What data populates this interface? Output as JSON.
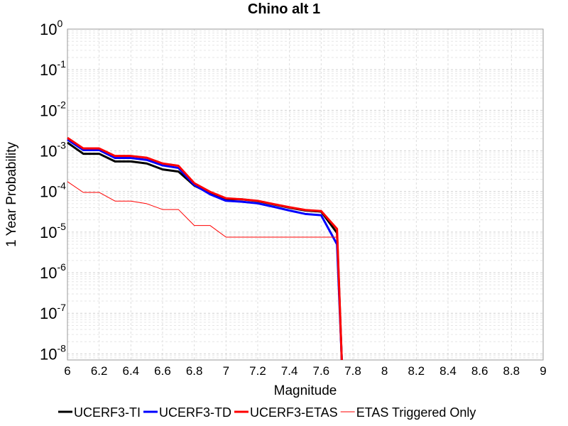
{
  "chart_data": {
    "type": "line",
    "title": "Chino alt 1",
    "xlabel": "Magnitude",
    "ylabel": "1 Year Probability",
    "xlim": [
      6,
      9
    ],
    "ylim_log10": [
      -8.15,
      0
    ],
    "y_scale": "log",
    "grid": true,
    "legend_placement": "bottom",
    "x_ticks": [
      "6",
      "6.2",
      "6.4",
      "6.6",
      "6.8",
      "7",
      "7.2",
      "7.4",
      "7.6",
      "7.8",
      "8",
      "8.2",
      "8.4",
      "8.6",
      "8.8",
      "9"
    ],
    "y_ticks": [
      {
        "base": "10",
        "exp": "0",
        "log10": 0
      },
      {
        "base": "10",
        "exp": "-1",
        "log10": -1
      },
      {
        "base": "10",
        "exp": "-2",
        "log10": -2
      },
      {
        "base": "10",
        "exp": "-3",
        "log10": -3
      },
      {
        "base": "10",
        "exp": "-4",
        "log10": -4
      },
      {
        "base": "10",
        "exp": "-5",
        "log10": -5
      },
      {
        "base": "10",
        "exp": "-6",
        "log10": -6
      },
      {
        "base": "10",
        "exp": "-7",
        "log10": -7
      },
      {
        "base": "10",
        "exp": "-8",
        "log10": -8
      }
    ],
    "series": [
      {
        "name": "UCERF3-TI",
        "color": "#000000",
        "width": 3,
        "points": [
          [
            6.0,
            0.0016
          ],
          [
            6.1,
            0.00085
          ],
          [
            6.2,
            0.00085
          ],
          [
            6.3,
            0.00055
          ],
          [
            6.4,
            0.00055
          ],
          [
            6.5,
            0.00049
          ],
          [
            6.6,
            0.00035
          ],
          [
            6.7,
            0.00031
          ],
          [
            6.8,
            0.00014
          ],
          [
            6.9,
            9e-05
          ],
          [
            7.0,
            6.5e-05
          ],
          [
            7.1,
            6.4e-05
          ],
          [
            7.2,
            5.8e-05
          ],
          [
            7.3,
            4.8e-05
          ],
          [
            7.4,
            4e-05
          ],
          [
            7.5,
            3.4e-05
          ],
          [
            7.6,
            3.2e-05
          ],
          [
            7.7,
            9.5e-06
          ],
          [
            7.73,
            5e-09
          ]
        ]
      },
      {
        "name": "UCERF3-TD",
        "color": "#0000ff",
        "width": 3,
        "points": [
          [
            6.0,
            0.0019
          ],
          [
            6.1,
            0.00105
          ],
          [
            6.2,
            0.00105
          ],
          [
            6.3,
            0.00067
          ],
          [
            6.4,
            0.00067
          ],
          [
            6.5,
            0.0006
          ],
          [
            6.6,
            0.00044
          ],
          [
            6.7,
            0.00038
          ],
          [
            6.8,
            0.000145
          ],
          [
            6.9,
            8.5e-05
          ],
          [
            7.0,
            5.9e-05
          ],
          [
            7.1,
            5.6e-05
          ],
          [
            7.2,
            5.1e-05
          ],
          [
            7.3,
            4.2e-05
          ],
          [
            7.4,
            3.4e-05
          ],
          [
            7.5,
            2.8e-05
          ],
          [
            7.6,
            2.6e-05
          ],
          [
            7.7,
            5e-06
          ],
          [
            7.73,
            5e-09
          ]
        ]
      },
      {
        "name": "UCERF3-ETAS",
        "color": "#ff0000",
        "width": 3,
        "points": [
          [
            6.0,
            0.0021
          ],
          [
            6.1,
            0.00115
          ],
          [
            6.2,
            0.00115
          ],
          [
            6.3,
            0.00075
          ],
          [
            6.4,
            0.00075
          ],
          [
            6.5,
            0.00068
          ],
          [
            6.6,
            0.00049
          ],
          [
            6.7,
            0.00043
          ],
          [
            6.8,
            0.00016
          ],
          [
            6.9,
            9.8e-05
          ],
          [
            7.0,
            6.8e-05
          ],
          [
            7.1,
            6.4e-05
          ],
          [
            7.2,
            5.9e-05
          ],
          [
            7.3,
            4.9e-05
          ],
          [
            7.4,
            4.1e-05
          ],
          [
            7.5,
            3.5e-05
          ],
          [
            7.6,
            3.3e-05
          ],
          [
            7.7,
            1.2e-05
          ],
          [
            7.73,
            5e-09
          ]
        ]
      },
      {
        "name": "ETAS Triggered Only",
        "color": "#ff0000",
        "width": 1,
        "points": [
          [
            6.0,
            0.000175
          ],
          [
            6.1,
            9.5e-05
          ],
          [
            6.2,
            9.5e-05
          ],
          [
            6.3,
            5.8e-05
          ],
          [
            6.4,
            5.8e-05
          ],
          [
            6.5,
            5e-05
          ],
          [
            6.6,
            3.6e-05
          ],
          [
            6.7,
            3.6e-05
          ],
          [
            6.8,
            1.45e-05
          ],
          [
            6.9,
            1.45e-05
          ],
          [
            7.0,
            7.5e-06
          ],
          [
            7.1,
            7.5e-06
          ],
          [
            7.2,
            7.5e-06
          ],
          [
            7.3,
            7.5e-06
          ],
          [
            7.4,
            7.5e-06
          ],
          [
            7.5,
            7.5e-06
          ],
          [
            7.6,
            7.5e-06
          ],
          [
            7.7,
            7.5e-06
          ],
          [
            7.73,
            5e-09
          ]
        ]
      }
    ]
  }
}
